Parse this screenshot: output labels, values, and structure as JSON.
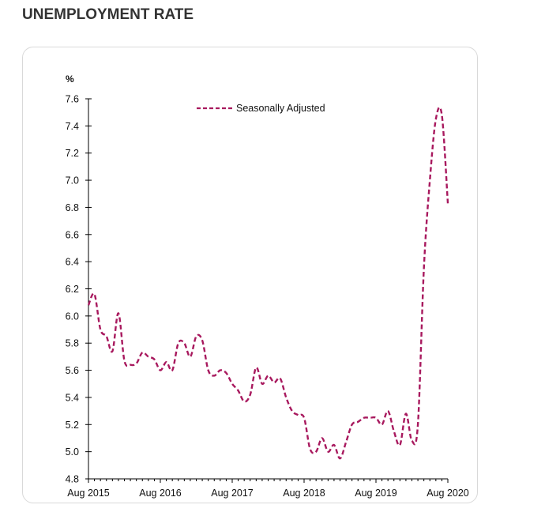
{
  "page": {
    "title": "UNEMPLOYMENT RATE"
  },
  "chart_data": {
    "type": "line",
    "ylabel": "%",
    "ylim": [
      4.8,
      7.6
    ],
    "yticks": [
      "4.8",
      "5.0",
      "5.2",
      "5.4",
      "5.6",
      "5.8",
      "6.0",
      "6.2",
      "6.4",
      "6.6",
      "6.8",
      "7.0",
      "7.2",
      "7.4",
      "7.6"
    ],
    "xlabels": [
      "Aug 2015",
      "Aug 2016",
      "Aug 2017",
      "Aug 2018",
      "Aug 2019",
      "Aug 2020"
    ],
    "legend": "top-center",
    "line_color": "#a8195e",
    "series": [
      {
        "name": "Seasonally Adjusted",
        "x": [
          "2015-08",
          "2015-09",
          "2015-10",
          "2015-11",
          "2015-12",
          "2016-01",
          "2016-02",
          "2016-03",
          "2016-04",
          "2016-05",
          "2016-06",
          "2016-07",
          "2016-08",
          "2016-09",
          "2016-10",
          "2016-11",
          "2016-12",
          "2017-01",
          "2017-02",
          "2017-03",
          "2017-04",
          "2017-05",
          "2017-06",
          "2017-07",
          "2017-08",
          "2017-09",
          "2017-10",
          "2017-11",
          "2017-12",
          "2018-01",
          "2018-02",
          "2018-03",
          "2018-04",
          "2018-05",
          "2018-06",
          "2018-07",
          "2018-08",
          "2018-09",
          "2018-10",
          "2018-11",
          "2018-12",
          "2019-01",
          "2019-02",
          "2019-03",
          "2019-04",
          "2019-05",
          "2019-06",
          "2019-07",
          "2019-08",
          "2019-09",
          "2019-10",
          "2019-11",
          "2019-12",
          "2020-01",
          "2020-02",
          "2020-03",
          "2020-04",
          "2020-05",
          "2020-06",
          "2020-07",
          "2020-08"
        ],
        "values": [
          6.08,
          6.16,
          5.9,
          5.85,
          5.74,
          6.02,
          5.67,
          5.64,
          5.65,
          5.73,
          5.7,
          5.68,
          5.6,
          5.66,
          5.6,
          5.8,
          5.8,
          5.7,
          5.85,
          5.82,
          5.6,
          5.56,
          5.6,
          5.58,
          5.5,
          5.45,
          5.37,
          5.42,
          5.62,
          5.5,
          5.56,
          5.51,
          5.54,
          5.4,
          5.3,
          5.27,
          5.25,
          5.02,
          5.0,
          5.1,
          5.0,
          5.05,
          4.95,
          5.07,
          5.2,
          5.22,
          5.25,
          5.25,
          5.25,
          5.2,
          5.3,
          5.15,
          5.05,
          5.28,
          5.08,
          5.2,
          6.35,
          7.0,
          7.45,
          7.48,
          6.83
        ]
      }
    ]
  }
}
